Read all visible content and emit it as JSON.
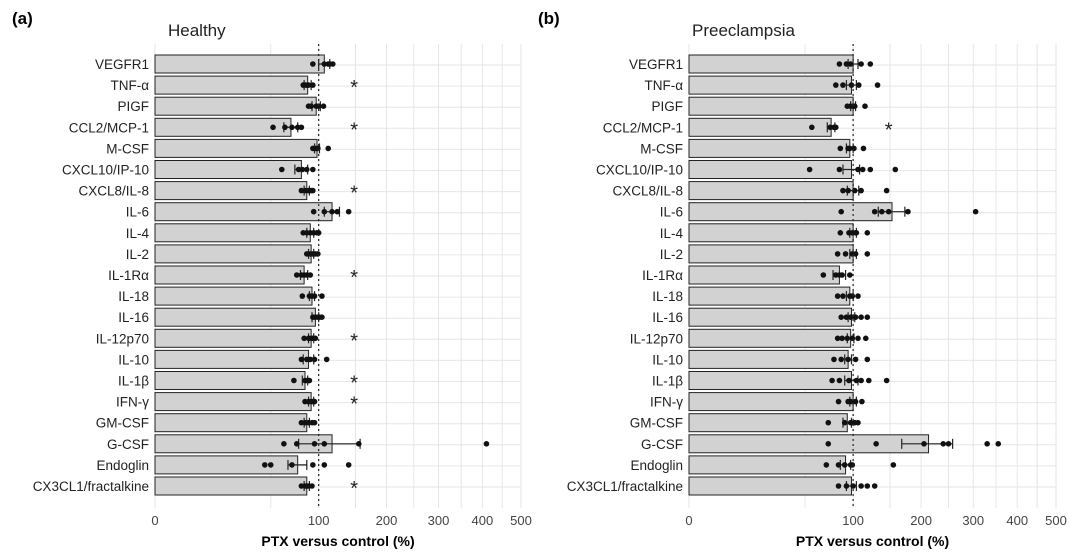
{
  "chart_data": [
    {
      "panel_tag": "(a)",
      "title": "Healthy",
      "type": "bar",
      "orientation": "horizontal",
      "xlabel": "PTX versus control (%)",
      "x_ticks": [
        "0",
        "100",
        "200",
        "300",
        "400",
        "500"
      ],
      "x_scale": "sqrt",
      "xlim": [
        0,
        500
      ],
      "reference_line": 100,
      "categories": [
        "VEGFR1",
        "TNF-α",
        "PIGF",
        "CCL2/MCP-1",
        "M-CSF",
        "CXCL10/IP-10",
        "CXCL8/IL-8",
        "IL-6",
        "IL-4",
        "IL-2",
        "IL-1Rα",
        "IL-18",
        "IL-16",
        "IL-12p70",
        "IL-10",
        "IL-1β",
        "IFN-γ",
        "GM-CSF",
        "G-CSF",
        "Endoglin",
        "CX3CL1/fractalkine"
      ],
      "values": [
        107,
        87,
        97,
        69,
        98,
        80,
        86,
        117,
        90,
        91,
        83,
        92,
        96,
        91,
        88,
        84,
        91,
        86,
        117,
        76,
        86
      ],
      "errors": [
        7,
        4,
        5,
        7,
        3,
        7,
        3,
        10,
        4,
        3,
        4,
        3,
        4,
        3,
        6,
        3,
        3,
        3,
        40,
        10,
        3
      ],
      "points": [
        [
          93,
          107,
          112,
          114,
          118
        ],
        [
          82,
          85,
          87,
          88,
          93
        ],
        [
          88,
          91,
          97,
          100,
          106
        ],
        [
          52,
          63,
          70,
          76,
          80
        ],
        [
          93,
          96,
          98,
          99,
          112
        ],
        [
          60,
          77,
          81,
          86,
          93
        ],
        [
          80,
          84,
          88,
          91,
          93
        ],
        [
          94,
          107,
          117,
          124,
          140
        ],
        [
          82,
          86,
          90,
          94,
          98,
          100
        ],
        [
          86,
          90,
          93,
          96,
          99
        ],
        [
          75,
          80,
          83,
          86,
          90
        ],
        [
          81,
          89,
          92,
          95,
          104
        ],
        [
          93,
          96,
          99,
          101,
          104
        ],
        [
          83,
          88,
          91,
          93,
          96
        ],
        [
          80,
          86,
          90,
          95,
          110
        ],
        [
          72,
          84,
          86,
          88,
          89
        ],
        [
          84,
          88,
          91,
          93,
          95
        ],
        [
          80,
          84,
          88,
          92,
          95
        ],
        [
          62,
          75,
          95,
          107,
          155,
          410
        ],
        [
          45,
          50,
          70,
          93,
          107,
          140
        ],
        [
          80,
          84,
          86,
          88,
          92
        ]
      ],
      "significant": [
        "TNF-α",
        "CCL2/MCP-1",
        "CXCL8/IL-8",
        "IL-1Rα",
        "IL-12p70",
        "IL-1β",
        "IFN-γ",
        "CX3CL1/fractalkine"
      ],
      "grid": true
    },
    {
      "panel_tag": "(b)",
      "title": "Preeclampsia",
      "type": "bar",
      "orientation": "horizontal",
      "xlabel": "PTX versus control (%)",
      "x_ticks": [
        "0",
        "100",
        "200",
        "300",
        "400",
        "500"
      ],
      "x_scale": "sqrt",
      "xlim": [
        0,
        500
      ],
      "reference_line": 100,
      "categories": [
        "VEGFR1",
        "TNF-α",
        "PIGF",
        "CCL2/MCP-1",
        "M-CSF",
        "CXCL10/IP-10",
        "CXCL8/IL-8",
        "IL-6",
        "IL-4",
        "IL-2",
        "IL-1Rα",
        "IL-18",
        "IL-16",
        "IL-12p70",
        "IL-10",
        "IL-1β",
        "IFN-γ",
        "GM-CSF",
        "G-CSF",
        "Endoglin",
        "CX3CL1/fractalkine"
      ],
      "values": [
        100,
        98,
        100,
        75,
        96,
        98,
        100,
        153,
        100,
        100,
        84,
        96,
        98,
        97,
        94,
        98,
        100,
        93,
        213,
        91,
        98
      ],
      "errors": [
        6,
        6,
        3,
        4,
        4,
        10,
        7,
        20,
        4,
        4,
        7,
        4,
        4,
        4,
        4,
        8,
        4,
        5,
        45,
        6,
        6
      ],
      "points": [
        [
          84,
          92,
          97,
          110,
          122
        ],
        [
          80,
          88,
          98,
          107,
          132
        ],
        [
          93,
          97,
          100,
          102,
          115
        ],
        [
          56,
          74,
          78,
          79,
          80
        ],
        [
          85,
          94,
          96,
          101,
          113
        ],
        [
          54,
          84,
          106,
          112,
          122,
          158
        ],
        [
          88,
          94,
          102,
          110,
          145
        ],
        [
          86,
          128,
          138,
          148,
          178,
          305
        ],
        [
          85,
          95,
          99,
          103,
          104,
          118
        ],
        [
          82,
          91,
          99,
          103,
          118
        ],
        [
          67,
          80,
          84,
          87,
          96
        ],
        [
          82,
          88,
          96,
          99,
          106
        ],
        [
          86,
          92,
          97,
          103,
          110,
          118
        ],
        [
          82,
          87,
          93,
          99,
          106,
          116
        ],
        [
          78,
          86,
          94,
          103,
          118
        ],
        [
          76,
          84,
          95,
          104,
          110,
          120,
          145
        ],
        [
          83,
          94,
          97,
          103,
          111
        ],
        [
          72,
          90,
          97,
          102,
          106
        ],
        [
          72,
          130,
          205,
          240,
          250,
          330,
          355
        ],
        [
          70,
          83,
          90,
          97,
          99,
          155
        ],
        [
          83,
          92,
          100,
          110,
          118,
          128
        ]
      ],
      "significant": [
        "CCL2/MCP-1"
      ],
      "grid": true
    }
  ]
}
